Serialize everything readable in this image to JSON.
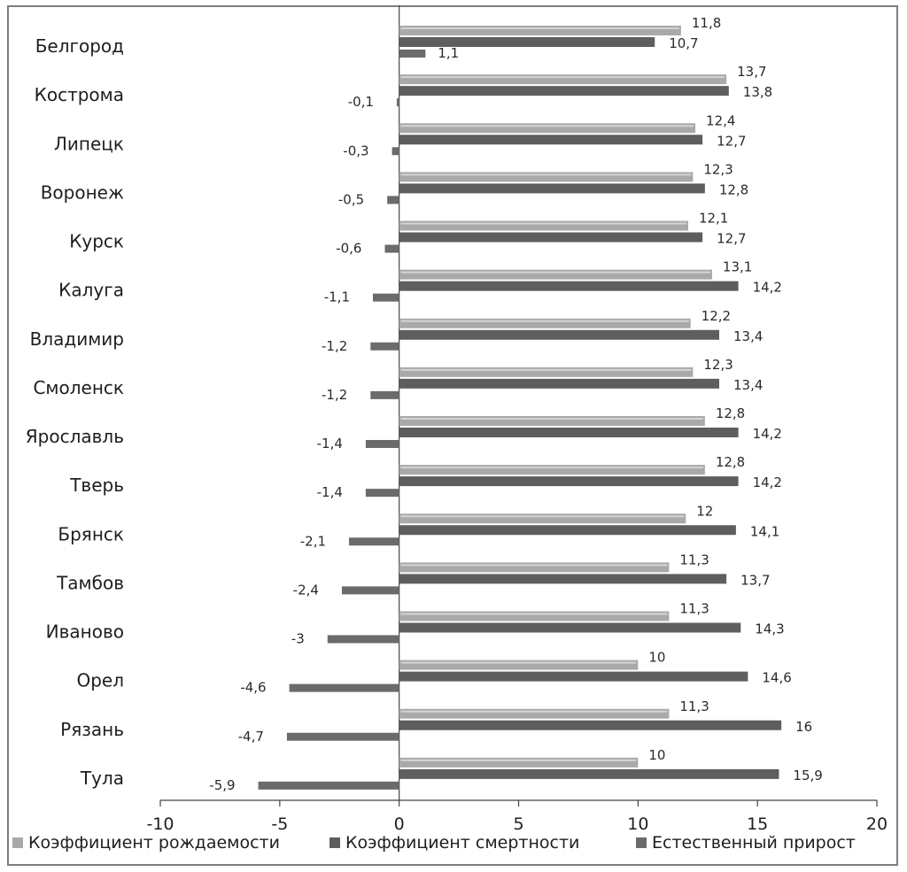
{
  "chart_data": {
    "type": "bar",
    "orientation": "horizontal",
    "categories": [
      "Белгород",
      "Кострома",
      "Липецк",
      "Воронеж",
      "Курск",
      "Калуга",
      "Владимир",
      "Смоленск",
      "Ярославль",
      "Тверь",
      "Брянск",
      "Тамбов",
      "Иваново",
      "Орел",
      "Рязань",
      "Тула"
    ],
    "series": [
      {
        "name": "Коэффициент рождаемости",
        "color": "#a9a9a9",
        "values": [
          11.8,
          13.7,
          12.4,
          12.3,
          12.1,
          13.1,
          12.2,
          12.3,
          12.8,
          12.8,
          12,
          11.3,
          11.3,
          10,
          11.3,
          10
        ]
      },
      {
        "name": "Коэффициент смертности",
        "color": "#5e5e5e",
        "values": [
          10.7,
          13.8,
          12.7,
          12.8,
          12.7,
          14.2,
          13.4,
          13.4,
          14.2,
          14.2,
          14.1,
          13.7,
          14.3,
          14.6,
          16,
          15.9
        ]
      },
      {
        "name": "Естественный прирост",
        "color": "#6b6b6b",
        "values": [
          1.1,
          -0.1,
          -0.3,
          -0.5,
          -0.6,
          -1.1,
          -1.2,
          -1.2,
          -1.4,
          -1.4,
          -2.1,
          -2.4,
          -3,
          -4.6,
          -4.7,
          -5.9
        ]
      }
    ],
    "data_labels": [
      [
        "11,8",
        "10,7",
        "1,1"
      ],
      [
        "13,7",
        "13,8",
        "-0,1"
      ],
      [
        "12,4",
        "12,7",
        "-0,3"
      ],
      [
        "12,3",
        "12,8",
        "-0,5"
      ],
      [
        "12,1",
        "12,7",
        "-0,6"
      ],
      [
        "13,1",
        "14,2",
        "-1,1"
      ],
      [
        "12,2",
        "13,4",
        "-1,2"
      ],
      [
        "12,3",
        "13,4",
        "-1,2"
      ],
      [
        "12,8",
        "14,2",
        "-1,4"
      ],
      [
        "12,8",
        "14,2",
        "-1,4"
      ],
      [
        "12",
        "14,1",
        "-2,1"
      ],
      [
        "11,3",
        "13,7",
        "-2,4"
      ],
      [
        "11,3",
        "14,3",
        "-3"
      ],
      [
        "10",
        "14,6",
        "-4,6"
      ],
      [
        "11,3",
        "16",
        "-4,7"
      ],
      [
        "10",
        "15,9",
        "-5,9"
      ]
    ],
    "x_ticks": [
      "-10",
      "-5",
      "0",
      "5",
      "10",
      "15",
      "20"
    ],
    "xlim": [
      -10,
      20
    ],
    "legend_position": "bottom",
    "grid": false
  }
}
